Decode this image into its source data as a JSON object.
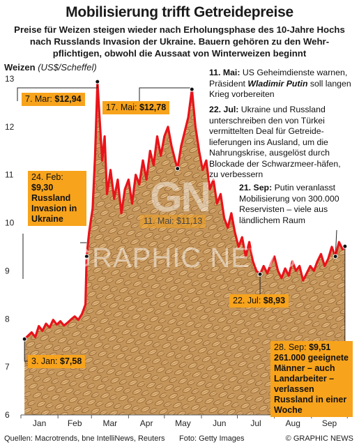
{
  "header": {
    "title": "Mobilisierung trifft Getreidepreise",
    "subtitle_lines": [
      "Preise für Weizen steigen wieder nach Erholungsphase des 10-Jahre Hochs",
      "nach Russlands Invasion der Ukraine. Bauern gehören zu den Wehr-",
      "pflichtigen, obwohl die Aussaat von Winterweizen beginnt"
    ]
  },
  "axis_label": {
    "name": "Weizen",
    "unit": "(US$/Scheffel)"
  },
  "callouts": {
    "mar7": {
      "date": "7. Mar:",
      "value": "$12,94"
    },
    "may17": {
      "date": "17. Mai:",
      "value": "$12,78"
    },
    "feb24": {
      "date": "24. Feb:",
      "value": "$9,30",
      "text": "Russland Invasion in Ukraine"
    },
    "may11": {
      "text": "11. Mai: $11,13"
    },
    "jul22": {
      "date": "22. Jul:",
      "value": "$8,93"
    },
    "jan3": {
      "date": "3. Jan:",
      "value": "$7,58"
    },
    "sep28": {
      "date": "28. Sep:",
      "value": "$9,51",
      "text": "261.000 geeignete Männer – auch Landarbeiter – verlassen Russland in einer Woche"
    }
  },
  "notes": {
    "may11": {
      "head": "11. Mai:",
      "text": "US Geheimdienste warnen, Präsident",
      "name": "Wladimir Putin",
      "tail": "soll langen Krieg vorbereiten"
    },
    "jul22": {
      "head": "22. Jul:",
      "text": "Ukraine und Russland unterschreiben den von Türkei vermittelten Deal für Getreide-lieferungen ins Ausland, um die Nahrungskrise, ausgelöst durch Blockade der Schwarzmeer-häfen, zu verbessern"
    },
    "sep21": {
      "head": "21. Sep:",
      "text": "Putin veranlasst Mobilisierung von 300.000 Reservisten – viele aus ländlichem Raum"
    }
  },
  "watermark": {
    "logo": "GN",
    "text": "GRAPHIC NEWS"
  },
  "footer": {
    "sources": "Quellen: Macrotrends, bne IntelliNews, Reuters",
    "photo": "Foto: Getty Images",
    "copyright": "© GRAPHIC NEWS"
  },
  "colors": {
    "line": "#e8141b",
    "callout": "#f7a31c",
    "grain": "#c99a5c"
  },
  "chart_data": {
    "type": "line",
    "title": "Mobilisierung trifft Getreidepreise",
    "ylabel": "Weizen (US$/Scheffel)",
    "ylim": [
      6,
      13
    ],
    "yticks": [
      6,
      7,
      8,
      9,
      10,
      11,
      12,
      13
    ],
    "categories": [
      "Jan",
      "Feb",
      "Mar",
      "Apr",
      "May",
      "Jun",
      "Jul",
      "Aug",
      "Sep"
    ],
    "series": [
      {
        "name": "Weizen",
        "x": [
          3,
          6,
          9,
          12,
          15,
          18,
          21,
          24,
          27,
          30,
          33,
          36,
          39,
          42,
          45,
          48,
          51,
          54,
          55,
          57,
          60,
          62,
          64,
          66,
          68,
          70,
          72,
          75,
          78,
          81,
          84,
          87,
          90,
          93,
          96,
          99,
          102,
          105,
          108,
          111,
          114,
          117,
          120,
          123,
          126,
          129,
          131,
          134,
          137,
          140,
          143,
          146,
          149,
          152,
          155,
          158,
          161,
          164,
          167,
          170,
          173,
          176,
          179,
          182,
          185,
          188,
          191,
          194,
          197,
          200,
          203,
          206,
          209,
          212,
          215,
          218,
          221,
          224,
          227,
          230,
          233,
          236,
          239,
          242,
          245,
          248,
          251,
          254,
          257,
          260,
          263,
          266,
          269,
          271
        ],
        "y": [
          7.58,
          7.65,
          7.72,
          7.62,
          7.85,
          7.75,
          7.9,
          7.82,
          7.98,
          7.88,
          7.95,
          7.86,
          7.92,
          7.99,
          8.05,
          7.98,
          8.1,
          8.3,
          9.3,
          9.8,
          10.3,
          11.4,
          12.94,
          12.1,
          11.3,
          11.8,
          10.6,
          11.1,
          10.5,
          10.9,
          10.2,
          10.7,
          10.9,
          10.4,
          11.0,
          10.8,
          11.3,
          10.9,
          11.5,
          11.2,
          11.8,
          11.4,
          11.8,
          12.0,
          11.6,
          11.3,
          11.13,
          11.6,
          11.9,
          12.2,
          12.78,
          12.0,
          11.5,
          11.1,
          11.3,
          10.7,
          10.9,
          10.4,
          10.6,
          10.1,
          9.9,
          10.2,
          9.8,
          9.5,
          9.7,
          9.3,
          9.6,
          9.2,
          9.0,
          8.93,
          9.1,
          8.95,
          9.15,
          9.3,
          9.0,
          8.85,
          9.05,
          8.9,
          9.2,
          9.0,
          9.1,
          8.8,
          8.95,
          9.1,
          9.0,
          9.2,
          9.35,
          9.1,
          9.25,
          9.5,
          9.3,
          9.6,
          9.45,
          9.51
        ]
      }
    ]
  }
}
